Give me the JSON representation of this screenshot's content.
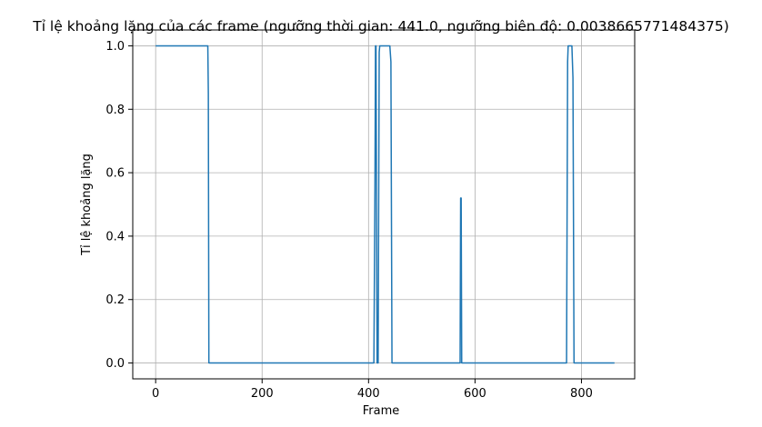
{
  "chart_data": {
    "type": "line",
    "title": "Tỉ lệ khoảng lặng của các frame (ngưỡng thời gian: 441.0, ngưỡng biên độ: 0.0038665771484375)",
    "xlabel": "Frame",
    "ylabel": "Tỉ lệ khoảng lặng",
    "xlim": [
      -43,
      900
    ],
    "ylim": [
      -0.05,
      1.05
    ],
    "xticks": [
      0,
      200,
      400,
      600,
      800
    ],
    "yticks": [
      0.0,
      0.2,
      0.4,
      0.6,
      0.8,
      1.0
    ],
    "xtick_labels": [
      "0",
      "200",
      "400",
      "600",
      "800"
    ],
    "ytick_labels": [
      "0.0",
      "0.2",
      "0.4",
      "0.6",
      "0.8",
      "1.0"
    ],
    "grid": true,
    "line_color": "#1f77b4",
    "series": [
      {
        "x": [
          0,
          98,
          99,
          100,
          410,
          412,
          413,
          414,
          416,
          418,
          420,
          421,
          422,
          440,
          442,
          444,
          572,
          573,
          574,
          575,
          772,
          774,
          775,
          782,
          784,
          786,
          862
        ],
        "y": [
          1.0,
          1.0,
          0.85,
          0.0,
          0.0,
          0.55,
          1.0,
          1.0,
          0.0,
          0.0,
          0.98,
          1.0,
          1.0,
          1.0,
          0.95,
          0.0,
          0.0,
          0.52,
          0.52,
          0.0,
          0.0,
          0.95,
          1.0,
          1.0,
          0.9,
          0.0,
          0.0
        ]
      }
    ]
  }
}
